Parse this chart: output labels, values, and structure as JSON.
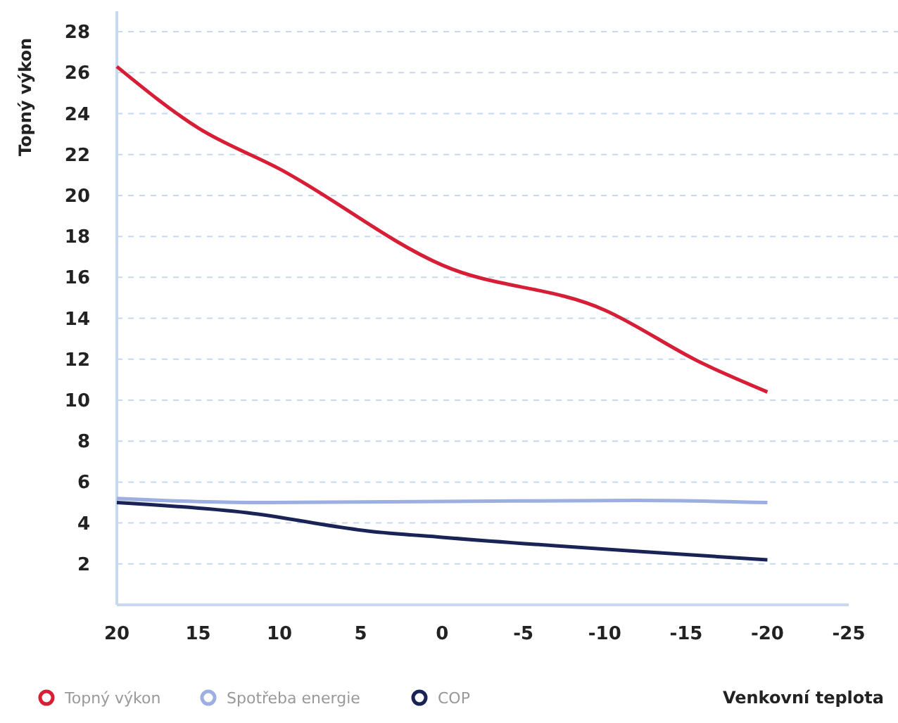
{
  "chart_data": {
    "type": "line",
    "xlabel": "Venkovní teplota",
    "ylabel": "Topný výkon",
    "xlim": [
      20,
      -25
    ],
    "ylim": [
      0,
      29
    ],
    "xticks": [
      20,
      15,
      10,
      5,
      0,
      -5,
      -10,
      -15,
      -20,
      -25
    ],
    "yticks": [
      2,
      4,
      6,
      8,
      10,
      12,
      14,
      16,
      18,
      20,
      22,
      24,
      26,
      28
    ],
    "grid": "y",
    "legend": "bottom left",
    "marker": "none",
    "line_style": "solid",
    "series": [
      {
        "name": "Topný výkon",
        "color": "#d61f36",
        "x": [
          20,
          15,
          10,
          0,
          -10,
          -16,
          -20
        ],
        "values": [
          26.3,
          23.3,
          21.3,
          16.6,
          14.4,
          11.8,
          10.4
        ]
      },
      {
        "name": "Spotřeba energie",
        "color": "#9daee0",
        "x": [
          20,
          12,
          0,
          -12,
          -20
        ],
        "values": [
          5.2,
          5.0,
          5.05,
          5.1,
          5.0
        ]
      },
      {
        "name": "COP",
        "color": "#1a2356",
        "x": [
          20,
          12,
          4.5,
          0,
          -20
        ],
        "values": [
          5.0,
          4.5,
          3.6,
          3.3,
          2.2
        ]
      }
    ]
  }
}
